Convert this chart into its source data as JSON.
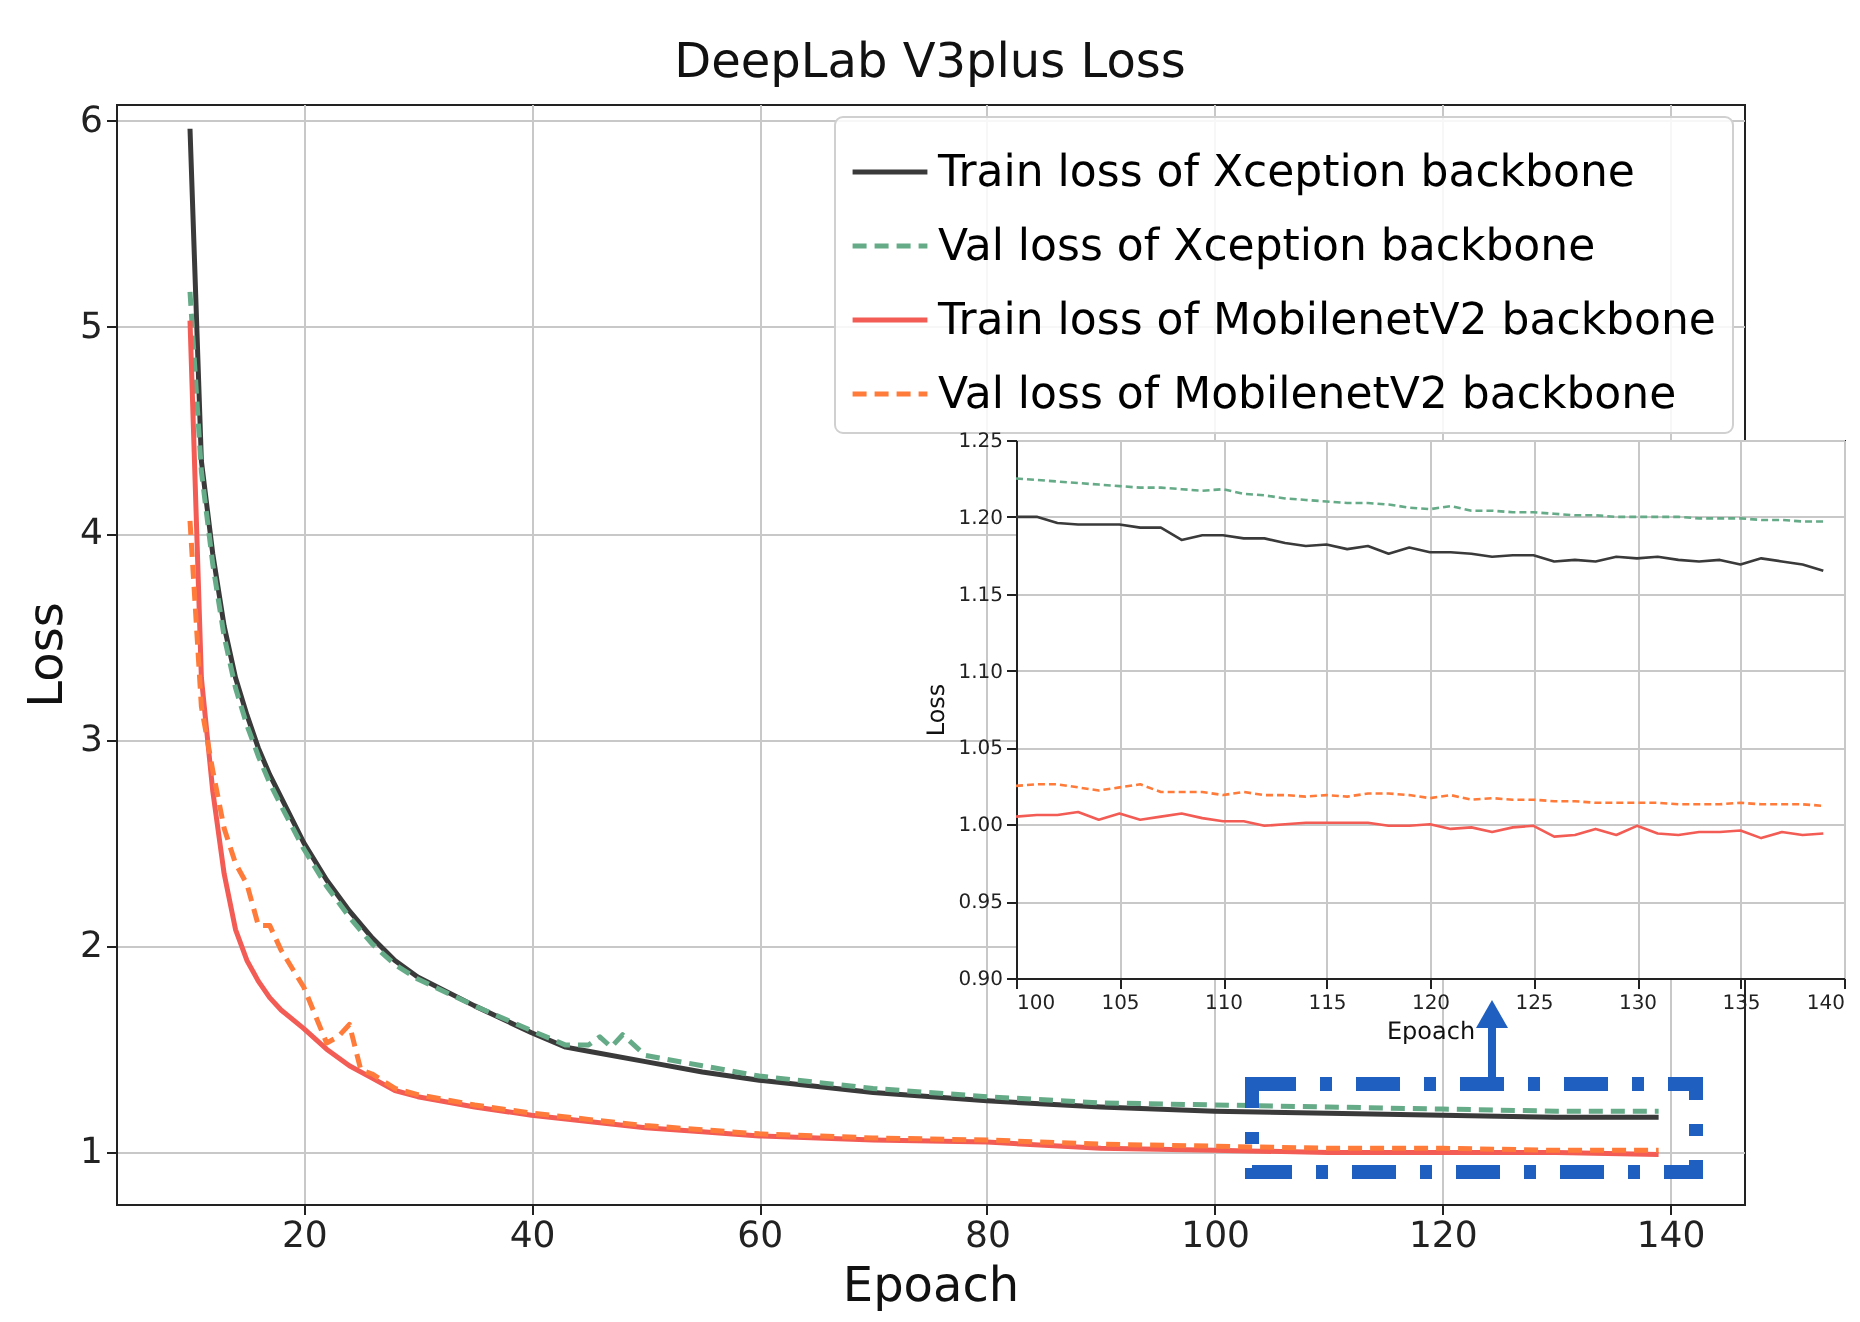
{
  "chart_data": [
    {
      "type": "line",
      "title": "DeepLab V3plus Loss",
      "xlabel": "Epoach",
      "ylabel": "Loss",
      "xlim": [
        3.5,
        146.5
      ],
      "ylim": [
        0.75,
        6.08
      ],
      "xticks": [
        20,
        40,
        60,
        80,
        100,
        120,
        140
      ],
      "yticks": [
        1,
        2,
        3,
        4,
        5,
        6
      ],
      "grid": true,
      "legend": "top right",
      "series": [
        {
          "name": "Train loss of Xception backbone",
          "color": "#3a3a3a",
          "line_style": "solid",
          "x": [
            10,
            11,
            12,
            13,
            14,
            15,
            16,
            17,
            18,
            20,
            22,
            24,
            26,
            28,
            30,
            35,
            40,
            43,
            45,
            50,
            55,
            60,
            70,
            80,
            90,
            100,
            110,
            120,
            130,
            139
          ],
          "values": [
            5.96,
            4.35,
            3.9,
            3.55,
            3.3,
            3.12,
            2.96,
            2.83,
            2.72,
            2.5,
            2.32,
            2.17,
            2.04,
            1.93,
            1.85,
            1.71,
            1.58,
            1.51,
            1.49,
            1.44,
            1.39,
            1.35,
            1.29,
            1.25,
            1.22,
            1.2,
            1.19,
            1.18,
            1.17,
            1.17
          ]
        },
        {
          "name": "Val loss of Xception backbone",
          "color": "#66ab88",
          "line_style": "dashed",
          "x": [
            10,
            11,
            12,
            13,
            14,
            15,
            16,
            17,
            18,
            20,
            22,
            24,
            26,
            28,
            30,
            35,
            40,
            43,
            45,
            46,
            47,
            48,
            50,
            55,
            60,
            70,
            80,
            90,
            100,
            110,
            120,
            130,
            139
          ],
          "values": [
            5.17,
            4.3,
            3.85,
            3.5,
            3.25,
            3.07,
            2.92,
            2.79,
            2.68,
            2.47,
            2.29,
            2.14,
            2.01,
            1.91,
            1.84,
            1.71,
            1.59,
            1.52,
            1.52,
            1.56,
            1.51,
            1.57,
            1.47,
            1.42,
            1.37,
            1.31,
            1.27,
            1.24,
            1.23,
            1.22,
            1.21,
            1.2,
            1.2
          ]
        },
        {
          "name": "Train loss of MobilenetV2 backbone",
          "color": "#f25c54",
          "line_style": "solid",
          "x": [
            10,
            11,
            12,
            13,
            14,
            15,
            16,
            17,
            18,
            20,
            22,
            24,
            26,
            28,
            30,
            35,
            40,
            45,
            50,
            55,
            60,
            70,
            80,
            90,
            100,
            110,
            120,
            130,
            139
          ],
          "values": [
            5.03,
            3.3,
            2.75,
            2.35,
            2.08,
            1.93,
            1.83,
            1.75,
            1.69,
            1.6,
            1.5,
            1.42,
            1.36,
            1.3,
            1.27,
            1.22,
            1.18,
            1.15,
            1.12,
            1.1,
            1.08,
            1.06,
            1.05,
            1.02,
            1.01,
            1.0,
            1.0,
            1.0,
            0.99
          ]
        },
        {
          "name": "Val loss of MobilenetV2 backbone",
          "color": "#ff7b3a",
          "line_style": "dashed",
          "x": [
            10,
            11,
            12,
            13,
            14,
            15,
            16,
            17,
            18,
            20,
            22,
            23,
            24,
            25,
            26,
            28,
            30,
            35,
            40,
            45,
            50,
            55,
            60,
            70,
            80,
            90,
            100,
            110,
            120,
            130,
            139
          ],
          "values": [
            4.06,
            3.16,
            2.85,
            2.57,
            2.4,
            2.3,
            2.1,
            2.1,
            1.98,
            1.8,
            1.53,
            1.56,
            1.62,
            1.4,
            1.38,
            1.31,
            1.28,
            1.23,
            1.19,
            1.16,
            1.13,
            1.11,
            1.09,
            1.07,
            1.06,
            1.04,
            1.03,
            1.02,
            1.02,
            1.01,
            1.01
          ]
        }
      ]
    },
    {
      "type": "line",
      "xlabel": "Epoach",
      "ylabel": "Loss",
      "xlim": [
        100,
        140
      ],
      "ylim": [
        0.9,
        1.25
      ],
      "xticks": [
        100,
        105,
        110,
        115,
        120,
        125,
        130,
        135,
        140
      ],
      "yticks": [
        {
          "value": 0.9,
          "label": "0.90"
        },
        0.95,
        {
          "value": 1,
          "label": "1.00"
        },
        1.05,
        {
          "value": 1.1,
          "label": "1.10"
        },
        1.15,
        {
          "value": 1.2,
          "label": "1.20"
        },
        1.25
      ],
      "grid": true,
      "series": [
        {
          "color": "#3a3a3a",
          "line_style": "solid",
          "x": [
            100,
            101,
            102,
            103,
            104,
            105,
            106,
            107,
            108,
            109,
            110,
            111,
            112,
            113,
            114,
            115,
            116,
            117,
            118,
            119,
            120,
            121,
            122,
            123,
            124,
            125,
            126,
            127,
            128,
            129,
            130,
            131,
            132,
            133,
            134,
            135,
            136,
            137,
            138,
            139
          ],
          "values": [
            1.2,
            1.2,
            1.196,
            1.195,
            1.195,
            1.195,
            1.193,
            1.193,
            1.185,
            1.188,
            1.188,
            1.186,
            1.186,
            1.183,
            1.181,
            1.182,
            1.179,
            1.181,
            1.176,
            1.18,
            1.177,
            1.177,
            1.176,
            1.174,
            1.175,
            1.175,
            1.171,
            1.172,
            1.171,
            1.174,
            1.173,
            1.174,
            1.172,
            1.171,
            1.172,
            1.169,
            1.173,
            1.171,
            1.169,
            1.165
          ]
        },
        {
          "color": "#66ab88",
          "line_style": "dashed",
          "x": [
            100,
            101,
            102,
            103,
            104,
            105,
            106,
            107,
            108,
            109,
            110,
            111,
            112,
            113,
            114,
            115,
            116,
            117,
            118,
            119,
            120,
            121,
            122,
            123,
            124,
            125,
            126,
            127,
            128,
            129,
            130,
            131,
            132,
            133,
            134,
            135,
            136,
            137,
            138,
            139
          ],
          "values": [
            1.225,
            1.224,
            1.223,
            1.222,
            1.221,
            1.22,
            1.219,
            1.219,
            1.218,
            1.217,
            1.218,
            1.215,
            1.214,
            1.212,
            1.211,
            1.21,
            1.209,
            1.209,
            1.208,
            1.206,
            1.205,
            1.207,
            1.204,
            1.204,
            1.203,
            1.203,
            1.202,
            1.201,
            1.201,
            1.2,
            1.2,
            1.2,
            1.2,
            1.199,
            1.199,
            1.199,
            1.198,
            1.198,
            1.197,
            1.197
          ]
        },
        {
          "color": "#f25c54",
          "line_style": "solid",
          "x": [
            100,
            101,
            102,
            103,
            104,
            105,
            106,
            107,
            108,
            109,
            110,
            111,
            112,
            113,
            114,
            115,
            116,
            117,
            118,
            119,
            120,
            121,
            122,
            123,
            124,
            125,
            126,
            127,
            128,
            129,
            130,
            131,
            132,
            133,
            134,
            135,
            136,
            137,
            138,
            139
          ],
          "values": [
            1.005,
            1.006,
            1.006,
            1.008,
            1.003,
            1.007,
            1.003,
            1.005,
            1.007,
            1.004,
            1.002,
            1.002,
            0.999,
            1.0,
            1.001,
            1.001,
            1.001,
            1.001,
            0.999,
            0.999,
            1.0,
            0.997,
            0.998,
            0.995,
            0.998,
            0.999,
            0.992,
            0.993,
            0.997,
            0.993,
            0.999,
            0.994,
            0.993,
            0.995,
            0.995,
            0.996,
            0.991,
            0.995,
            0.993,
            0.994
          ]
        },
        {
          "color": "#ff7b3a",
          "line_style": "dashed",
          "x": [
            100,
            101,
            102,
            103,
            104,
            105,
            106,
            107,
            108,
            109,
            110,
            111,
            112,
            113,
            114,
            115,
            116,
            117,
            118,
            119,
            120,
            121,
            122,
            123,
            124,
            125,
            126,
            127,
            128,
            129,
            130,
            131,
            132,
            133,
            134,
            135,
            136,
            137,
            138,
            139
          ],
          "values": [
            1.025,
            1.026,
            1.026,
            1.024,
            1.022,
            1.024,
            1.026,
            1.021,
            1.021,
            1.021,
            1.019,
            1.021,
            1.019,
            1.019,
            1.018,
            1.019,
            1.018,
            1.02,
            1.02,
            1.019,
            1.017,
            1.019,
            1.016,
            1.017,
            1.016,
            1.016,
            1.015,
            1.015,
            1.014,
            1.014,
            1.014,
            1.014,
            1.013,
            1.013,
            1.013,
            1.014,
            1.013,
            1.013,
            1.013,
            1.012
          ]
        }
      ]
    }
  ]
}
